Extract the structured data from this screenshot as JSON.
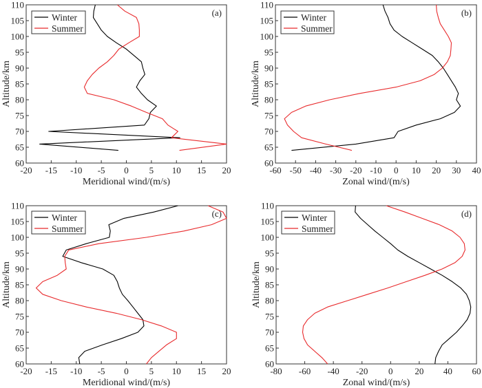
{
  "colors": {
    "winter": "#000000",
    "summer": "#e8292b",
    "axis": "#333333"
  },
  "chart_data": [
    {
      "type": "line",
      "panel_label": "(a)",
      "xlabel": "Meridional wind/(m/s)",
      "ylabel": "Altitude/km",
      "xlim": [
        -20,
        20
      ],
      "ylim": [
        60,
        110
      ],
      "xticks": [
        "-20",
        "-15",
        "-10",
        "-5",
        "0",
        "5",
        "10",
        "15",
        "20"
      ],
      "yticks": [
        "60",
        "65",
        "70",
        "75",
        "80",
        "85",
        "90",
        "95",
        "100",
        "105",
        "110"
      ],
      "legend": "top-left",
      "series": [
        {
          "name": "Winter",
          "altitude": [
            110,
            108,
            106,
            104,
            102,
            100,
            98,
            96,
            94,
            92,
            90,
            88,
            86,
            84,
            82,
            80,
            78,
            76,
            74,
            72,
            70,
            68,
            66,
            64
          ],
          "values": [
            -6.2,
            -6.5,
            -6.6,
            -5.8,
            -5,
            -3.8,
            -2,
            0,
            1.5,
            3,
            3.3,
            3.7,
            2.7,
            2,
            3,
            4.2,
            6,
            4.8,
            4.5,
            3.6,
            -15.5,
            10.7,
            -17.3,
            -1.6
          ]
        },
        {
          "name": "Summer",
          "altitude": [
            110,
            108,
            106,
            104,
            102,
            100,
            98,
            96,
            94,
            92,
            90,
            88,
            86,
            84,
            82,
            80,
            78,
            76,
            74,
            72,
            70,
            68,
            66,
            64
          ],
          "values": [
            -1.8,
            -0.3,
            2,
            2.5,
            2.6,
            2.6,
            0.5,
            -1.5,
            -2.5,
            -3.8,
            -5.5,
            -6.8,
            -7.8,
            -8.4,
            -7.8,
            -2.5,
            1,
            4,
            7.2,
            8.3,
            10.3,
            9,
            20,
            10.6
          ]
        }
      ]
    },
    {
      "type": "line",
      "panel_label": "(b)",
      "xlabel": "Zonal wind/(m/s)",
      "ylabel": "Altitude/km",
      "xlim": [
        -60,
        40
      ],
      "ylim": [
        60,
        110
      ],
      "xticks": [
        "-60",
        "-50",
        "-40",
        "-30",
        "-20",
        "-10",
        "0",
        "10",
        "20",
        "30",
        "40"
      ],
      "yticks": [
        "60",
        "65",
        "70",
        "75",
        "80",
        "85",
        "90",
        "95",
        "100",
        "105",
        "110"
      ],
      "legend": "top-left",
      "series": [
        {
          "name": "Winter",
          "altitude": [
            110,
            108,
            106,
            104,
            102,
            100,
            98,
            96,
            94,
            92,
            90,
            88,
            86,
            84,
            82,
            80,
            78,
            76,
            74,
            72,
            70,
            68,
            66,
            64
          ],
          "values": [
            -6.5,
            -5.5,
            -4,
            -3,
            -1,
            3,
            8,
            13,
            18,
            21,
            23.5,
            25.5,
            27.5,
            29.5,
            31,
            30,
            32,
            29,
            22,
            10,
            1,
            -1,
            -20,
            -52
          ]
        },
        {
          "name": "Summer",
          "altitude": [
            110,
            108,
            106,
            104,
            102,
            100,
            98,
            96,
            94,
            92,
            90,
            88,
            86,
            84,
            82,
            80,
            78,
            76,
            74,
            72,
            70,
            68,
            66,
            64
          ],
          "values": [
            20,
            20.2,
            21,
            22,
            24,
            26,
            27.5,
            27.3,
            27,
            25.5,
            23,
            19,
            12,
            0,
            -18,
            -33,
            -45,
            -52,
            -55.5,
            -54,
            -51,
            -47,
            -35,
            -22
          ]
        }
      ]
    },
    {
      "type": "line",
      "panel_label": "(c)",
      "xlabel": "Meridional wind/(m/s)",
      "ylabel": "Altitude/km",
      "xlim": [
        -20,
        20
      ],
      "ylim": [
        60,
        110
      ],
      "xticks": [
        "-20",
        "-15",
        "-10",
        "-5",
        "0",
        "5",
        "10",
        "15",
        "20"
      ],
      "yticks": [
        "60",
        "65",
        "70",
        "75",
        "80",
        "85",
        "90",
        "95",
        "100",
        "105",
        "110"
      ],
      "legend": "top-left",
      "series": [
        {
          "name": "Winter",
          "altitude": [
            110,
            108,
            106,
            104,
            102,
            100,
            98,
            96,
            94,
            92,
            90,
            88,
            86,
            84,
            82,
            80,
            78,
            76,
            74,
            72,
            70,
            68,
            66,
            64,
            62,
            60
          ],
          "values": [
            10.3,
            5.5,
            -0.5,
            -3.5,
            -3.2,
            -3.4,
            -8,
            -12,
            -12.7,
            -9,
            -4.7,
            -2.5,
            -1.8,
            -1.4,
            -0.8,
            0.3,
            1.3,
            2.3,
            3.3,
            3.5,
            2.3,
            -1,
            -4.8,
            -8.3,
            -9.5,
            -9.3
          ]
        },
        {
          "name": "Summer",
          "altitude": [
            110,
            108,
            106,
            104,
            102,
            100,
            98,
            96,
            94,
            92,
            90,
            88,
            86,
            84,
            82,
            80,
            78,
            76,
            74,
            72,
            70,
            68,
            66,
            64,
            62,
            60
          ],
          "values": [
            16.3,
            19.3,
            20,
            17,
            11.5,
            4,
            -5.5,
            -11.5,
            -12.3,
            -12.2,
            -12,
            -13.8,
            -16.7,
            -18,
            -16.7,
            -13,
            -8,
            -2,
            3,
            7,
            10,
            10,
            8,
            6.5,
            5,
            4
          ]
        }
      ]
    },
    {
      "type": "line",
      "panel_label": "(d)",
      "xlabel": "Zonal wind/(m/s)",
      "ylabel": "Altitude/km",
      "xlim": [
        -80,
        60
      ],
      "ylim": [
        60,
        110
      ],
      "xticks": [
        "-80",
        "-60",
        "-40",
        "-20",
        "0",
        "20",
        "40",
        "60"
      ],
      "yticks": [
        "60",
        "65",
        "70",
        "75",
        "80",
        "85",
        "90",
        "95",
        "100",
        "105",
        "110"
      ],
      "legend": "top-left",
      "series": [
        {
          "name": "Winter",
          "altitude": [
            110,
            108,
            106,
            104,
            102,
            100,
            98,
            96,
            94,
            92,
            90,
            88,
            86,
            84,
            82,
            80,
            78,
            76,
            74,
            72,
            70,
            68,
            66,
            64,
            62,
            60
          ],
          "values": [
            -24.5,
            -24.8,
            -21,
            -16,
            -11,
            -5.5,
            0,
            5,
            12,
            20,
            28,
            36,
            43,
            49,
            53,
            55,
            56,
            55.5,
            53.5,
            50,
            46,
            41,
            36,
            33.5,
            31.5,
            31
          ]
        },
        {
          "name": "Summer",
          "altitude": [
            110,
            108,
            106,
            104,
            102,
            100,
            98,
            96,
            94,
            92,
            90,
            88,
            86,
            84,
            82,
            80,
            78,
            76,
            74,
            72,
            70,
            68,
            66,
            64,
            62,
            60
          ],
          "values": [
            -3,
            10,
            22,
            34,
            43,
            48.5,
            51.5,
            52,
            50,
            45,
            36,
            24,
            11,
            -2,
            -16,
            -30,
            -44,
            -53,
            -58,
            -61,
            -61.5,
            -60.5,
            -58,
            -53,
            -48,
            -44
          ]
        }
      ]
    }
  ]
}
